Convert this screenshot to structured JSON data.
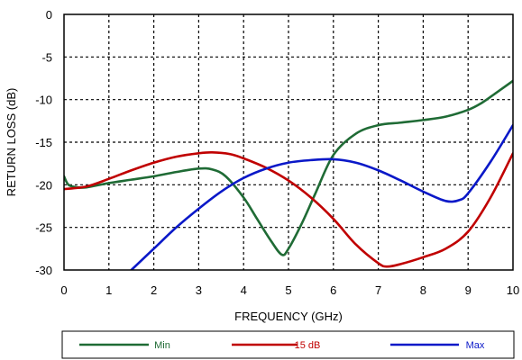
{
  "chart_data": {
    "type": "line",
    "title": "",
    "xlabel": "FREQUENCY (GHz)",
    "ylabel": "RETURN LOSS (dB)",
    "xlim": [
      0,
      10
    ],
    "ylim": [
      -30,
      0
    ],
    "xticks": [
      0,
      1,
      2,
      3,
      4,
      5,
      6,
      7,
      8,
      9,
      10
    ],
    "yticks": [
      0,
      -5,
      -10,
      -15,
      -20,
      -25,
      -30
    ],
    "xtick_labels": [
      "0",
      "1",
      "2",
      "3",
      "4",
      "5",
      "6",
      "7",
      "8",
      "9",
      "10"
    ],
    "ytick_labels": [
      "0",
      "-5",
      "-10",
      "-15",
      "-20",
      "-25",
      "-30"
    ],
    "grid": true,
    "legend_position": "bottom",
    "series": [
      {
        "name": "Min",
        "color": "#1f6b35",
        "x": [
          0,
          0.1,
          0.3,
          0.5,
          1,
          1.5,
          2,
          2.5,
          3,
          3.3,
          3.6,
          4,
          4.3,
          4.6,
          4.85,
          5,
          5.3,
          5.6,
          6,
          6.5,
          7,
          7.5,
          8,
          8.5,
          9,
          9.3,
          9.6,
          10
        ],
        "y": [
          -19,
          -20,
          -20.3,
          -20.3,
          -19.8,
          -19.4,
          -19,
          -18.5,
          -18.1,
          -18.2,
          -19,
          -21.5,
          -24,
          -26.5,
          -28.2,
          -27.5,
          -24.5,
          -21,
          -16.5,
          -14,
          -13,
          -12.7,
          -12.4,
          -12,
          -11.2,
          -10.4,
          -9.3,
          -7.8
        ]
      },
      {
        "name": "15 dB",
        "color": "#c00000",
        "x": [
          0,
          0.5,
          1,
          1.5,
          2,
          2.5,
          3,
          3.3,
          3.7,
          4,
          4.5,
          5,
          5.5,
          6,
          6.5,
          7,
          7.2,
          7.5,
          8,
          8.5,
          9,
          9.5,
          10
        ],
        "y": [
          -20.5,
          -20.2,
          -19.3,
          -18.3,
          -17.4,
          -16.7,
          -16.3,
          -16.2,
          -16.4,
          -16.9,
          -18,
          -19.5,
          -21.5,
          -24,
          -27,
          -29.2,
          -29.6,
          -29.3,
          -28.5,
          -27.5,
          -25.5,
          -21.5,
          -16.3
        ]
      },
      {
        "name": "Max",
        "color": "#0a18c8",
        "x": [
          1.5,
          2,
          2.5,
          3,
          3.5,
          4,
          4.5,
          5,
          5.5,
          6,
          6.5,
          7,
          7.5,
          8,
          8.5,
          8.8,
          9,
          9.5,
          10
        ],
        "y": [
          -30,
          -27.5,
          -25,
          -22.8,
          -20.8,
          -19.2,
          -18.1,
          -17.4,
          -17.1,
          -17,
          -17.4,
          -18.3,
          -19.5,
          -20.8,
          -21.9,
          -21.8,
          -21,
          -17.3,
          -13
        ]
      }
    ]
  }
}
